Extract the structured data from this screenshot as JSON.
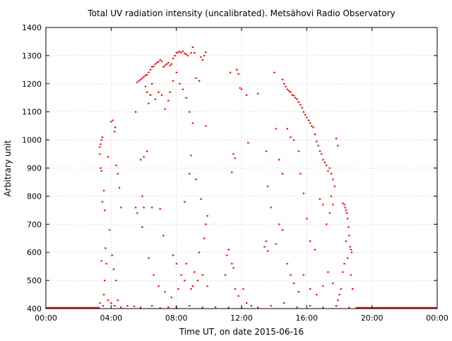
{
  "chart_data": {
    "type": "scatter",
    "title": "Total UV radiation intensity (uncalibrated). Metsähovi Radio Observatory",
    "xlabel": "Time UT, on date 2015-06-16",
    "ylabel": "Arbitrary unit",
    "x_unit": "hours UT",
    "xlim": [
      0,
      24
    ],
    "ylim": [
      400,
      1400
    ],
    "x_ticks": [
      0,
      4,
      8,
      12,
      16,
      20,
      24
    ],
    "x_tick_labels": [
      "00:00",
      "04:00",
      "08:00",
      "12:00",
      "16:00",
      "20:00",
      "00:00"
    ],
    "y_ticks": [
      400,
      500,
      600,
      700,
      800,
      900,
      1000,
      1100,
      1200,
      1300,
      1400
    ],
    "y_tick_labels": [
      "400",
      "500",
      "600",
      "700",
      "800",
      "900",
      "1000",
      "1100",
      "1200",
      "1300",
      "1400"
    ],
    "grid": true,
    "legend": "none",
    "marker_color": "#ff0000",
    "series": [
      {
        "points": [
          [
            3.3,
            975
          ],
          [
            3.35,
            985
          ],
          [
            3.4,
            1000
          ],
          [
            3.45,
            1010
          ],
          [
            3.3,
            950
          ],
          [
            3.35,
            900
          ],
          [
            3.4,
            890
          ],
          [
            3.45,
            780
          ],
          [
            3.55,
            820
          ],
          [
            3.6,
            750
          ],
          [
            3.65,
            615
          ],
          [
            3.7,
            560
          ],
          [
            3.8,
            940
          ],
          [
            4.0,
            1065
          ],
          [
            4.1,
            1070
          ],
          [
            4.25,
            1045
          ],
          [
            4.2,
            1030
          ],
          [
            4.3,
            910
          ],
          [
            4.4,
            880
          ],
          [
            4.5,
            830
          ],
          [
            4.6,
            760
          ],
          [
            3.9,
            680
          ],
          [
            4.05,
            590
          ],
          [
            4.15,
            540
          ],
          [
            4.3,
            500
          ],
          [
            3.6,
            500
          ],
          [
            3.55,
            450
          ],
          [
            3.4,
            570
          ],
          [
            5.5,
            1100
          ],
          [
            5.6,
            1205
          ],
          [
            5.7,
            1210
          ],
          [
            5.8,
            1215
          ],
          [
            5.9,
            1220
          ],
          [
            6.0,
            1225
          ],
          [
            6.1,
            1230
          ],
          [
            6.2,
            1232
          ],
          [
            6.3,
            1240
          ],
          [
            6.4,
            1250
          ],
          [
            6.5,
            1260
          ],
          [
            6.6,
            1262
          ],
          [
            6.7,
            1270
          ],
          [
            6.8,
            1275
          ],
          [
            6.9,
            1278
          ],
          [
            7.0,
            1285
          ],
          [
            7.1,
            1280
          ],
          [
            7.2,
            1260
          ],
          [
            7.3,
            1265
          ],
          [
            7.4,
            1270
          ],
          [
            7.5,
            1275
          ],
          [
            7.6,
            1265
          ],
          [
            7.7,
            1270
          ],
          [
            7.8,
            1290
          ],
          [
            7.9,
            1300
          ],
          [
            8.0,
            1310
          ],
          [
            8.1,
            1312
          ],
          [
            8.2,
            1315
          ],
          [
            8.3,
            1310
          ],
          [
            8.4,
            1316
          ],
          [
            8.5,
            1308
          ],
          [
            8.6,
            1305
          ],
          [
            8.7,
            1300
          ],
          [
            8.9,
            1310
          ],
          [
            9.0,
            1330
          ],
          [
            9.1,
            1310
          ],
          [
            9.5,
            1295
          ],
          [
            9.6,
            1285
          ],
          [
            9.7,
            1300
          ],
          [
            9.8,
            1312
          ],
          [
            6.1,
            1190
          ],
          [
            6.2,
            1170
          ],
          [
            6.3,
            1130
          ],
          [
            6.4,
            1160
          ],
          [
            6.5,
            1200
          ],
          [
            6.7,
            1145
          ],
          [
            6.9,
            1170
          ],
          [
            7.1,
            1160
          ],
          [
            7.3,
            1110
          ],
          [
            7.5,
            1140
          ],
          [
            7.6,
            1170
          ],
          [
            7.8,
            1210
          ],
          [
            8.0,
            1240
          ],
          [
            8.2,
            1200
          ],
          [
            8.4,
            1180
          ],
          [
            8.6,
            1150
          ],
          [
            8.8,
            1100
          ],
          [
            9.0,
            1060
          ],
          [
            9.2,
            1220
          ],
          [
            9.4,
            1210
          ],
          [
            9.8,
            1050
          ],
          [
            5.8,
            930
          ],
          [
            6.0,
            940
          ],
          [
            6.2,
            960
          ],
          [
            5.9,
            800
          ],
          [
            6.0,
            760
          ],
          [
            6.5,
            760
          ],
          [
            7.0,
            755
          ],
          [
            7.2,
            660
          ],
          [
            7.8,
            590
          ],
          [
            8.0,
            560
          ],
          [
            8.3,
            520
          ],
          [
            8.5,
            780
          ],
          [
            8.8,
            880
          ],
          [
            8.9,
            945
          ],
          [
            9.2,
            860
          ],
          [
            9.5,
            790
          ],
          [
            9.7,
            650
          ],
          [
            9.8,
            700
          ],
          [
            9.9,
            730
          ],
          [
            9.4,
            600
          ],
          [
            9.1,
            530
          ],
          [
            9.0,
            480
          ],
          [
            8.6,
            560
          ],
          [
            5.5,
            760
          ],
          [
            5.6,
            740
          ],
          [
            5.9,
            690
          ],
          [
            6.3,
            580
          ],
          [
            6.6,
            520
          ],
          [
            6.9,
            480
          ],
          [
            7.3,
            460
          ],
          [
            7.7,
            440
          ],
          [
            8.1,
            470
          ],
          [
            8.5,
            500
          ],
          [
            8.9,
            470
          ],
          [
            9.3,
            500
          ],
          [
            9.6,
            520
          ],
          [
            9.9,
            480
          ],
          [
            11.3,
            1240
          ],
          [
            11.7,
            1250
          ],
          [
            11.8,
            1235
          ],
          [
            11.9,
            1185
          ],
          [
            12.0,
            1180
          ],
          [
            11.5,
            950
          ],
          [
            11.6,
            935
          ],
          [
            11.4,
            885
          ],
          [
            12.3,
            1160
          ],
          [
            12.4,
            990
          ],
          [
            11.0,
            520
          ],
          [
            11.1,
            590
          ],
          [
            11.2,
            610
          ],
          [
            11.4,
            560
          ],
          [
            11.5,
            545
          ],
          [
            11.6,
            470
          ],
          [
            11.8,
            445
          ],
          [
            12.1,
            470
          ],
          [
            12.3,
            420
          ],
          [
            12.6,
            410
          ],
          [
            13.0,
            1165
          ],
          [
            13.5,
            960
          ],
          [
            13.6,
            835
          ],
          [
            13.8,
            760
          ],
          [
            13.5,
            640
          ],
          [
            13.6,
            605
          ],
          [
            13.4,
            620
          ],
          [
            14.0,
            1240
          ],
          [
            14.5,
            1215
          ],
          [
            14.6,
            1200
          ],
          [
            14.7,
            1190
          ],
          [
            14.8,
            1180
          ],
          [
            14.9,
            1175
          ],
          [
            15.0,
            1170
          ],
          [
            15.1,
            1160
          ],
          [
            15.2,
            1158
          ],
          [
            15.3,
            1150
          ],
          [
            15.4,
            1145
          ],
          [
            15.5,
            1135
          ],
          [
            15.6,
            1125
          ],
          [
            15.7,
            1115
          ],
          [
            15.8,
            1100
          ],
          [
            15.9,
            1090
          ],
          [
            16.0,
            1080
          ],
          [
            16.1,
            1070
          ],
          [
            16.2,
            1060
          ],
          [
            16.3,
            1050
          ],
          [
            16.4,
            1045
          ],
          [
            16.5,
            1020
          ],
          [
            16.6,
            995
          ],
          [
            16.7,
            980
          ],
          [
            16.8,
            960
          ],
          [
            16.9,
            950
          ],
          [
            17.0,
            930
          ],
          [
            17.1,
            920
          ],
          [
            17.2,
            910
          ],
          [
            17.3,
            890
          ],
          [
            17.4,
            900
          ],
          [
            17.5,
            880
          ],
          [
            17.6,
            860
          ],
          [
            17.7,
            835
          ],
          [
            14.1,
            1040
          ],
          [
            14.3,
            930
          ],
          [
            14.5,
            880
          ],
          [
            14.8,
            1040
          ],
          [
            15.0,
            1010
          ],
          [
            15.2,
            1000
          ],
          [
            15.5,
            960
          ],
          [
            15.6,
            880
          ],
          [
            15.8,
            810
          ],
          [
            16.0,
            720
          ],
          [
            16.2,
            640
          ],
          [
            16.5,
            610
          ],
          [
            16.8,
            790
          ],
          [
            17.0,
            770
          ],
          [
            17.2,
            700
          ],
          [
            17.4,
            740
          ],
          [
            17.5,
            800
          ],
          [
            17.6,
            770
          ],
          [
            17.8,
            1005
          ],
          [
            17.9,
            980
          ],
          [
            18.2,
            775
          ],
          [
            18.3,
            770
          ],
          [
            18.35,
            760
          ],
          [
            18.4,
            750
          ],
          [
            18.45,
            740
          ],
          [
            18.5,
            720
          ],
          [
            18.55,
            690
          ],
          [
            18.6,
            660
          ],
          [
            18.65,
            620
          ],
          [
            18.7,
            610
          ],
          [
            18.75,
            600
          ],
          [
            18.4,
            640
          ],
          [
            18.3,
            560
          ],
          [
            18.2,
            530
          ],
          [
            18.1,
            470
          ],
          [
            18.0,
            450
          ],
          [
            18.5,
            580
          ],
          [
            18.7,
            520
          ],
          [
            18.8,
            470
          ],
          [
            14.1,
            630
          ],
          [
            14.3,
            700
          ],
          [
            14.5,
            680
          ],
          [
            14.8,
            560
          ],
          [
            15.0,
            520
          ],
          [
            15.2,
            490
          ],
          [
            15.5,
            460
          ],
          [
            15.8,
            520
          ],
          [
            16.2,
            470
          ],
          [
            16.6,
            450
          ],
          [
            17.0,
            480
          ],
          [
            17.3,
            530
          ],
          [
            17.6,
            490
          ],
          [
            17.9,
            430
          ],
          [
            3.3,
            420
          ],
          [
            3.5,
            410
          ],
          [
            3.8,
            430
          ],
          [
            4.0,
            420
          ],
          [
            4.2,
            410
          ],
          [
            4.4,
            430
          ],
          [
            4.6,
            405
          ],
          [
            5.0,
            410
          ],
          [
            5.4,
            408
          ],
          [
            5.8,
            404
          ],
          [
            6.5,
            410
          ],
          [
            7.0,
            402
          ],
          [
            7.5,
            405
          ],
          [
            8.0,
            404
          ],
          [
            8.8,
            410
          ],
          [
            9.6,
            404
          ],
          [
            10.4,
            405
          ],
          [
            11.2,
            404
          ],
          [
            12.0,
            402
          ],
          [
            13.0,
            404
          ],
          [
            13.8,
            410
          ],
          [
            14.6,
            420
          ],
          [
            15.4,
            405
          ],
          [
            16.2,
            410
          ],
          [
            17.0,
            404
          ],
          [
            17.8,
            410
          ],
          [
            18.6,
            404
          ]
        ]
      }
    ],
    "baseline_segments": [
      [
        0,
        3.3,
        400
      ],
      [
        19.0,
        24,
        400
      ]
    ]
  }
}
